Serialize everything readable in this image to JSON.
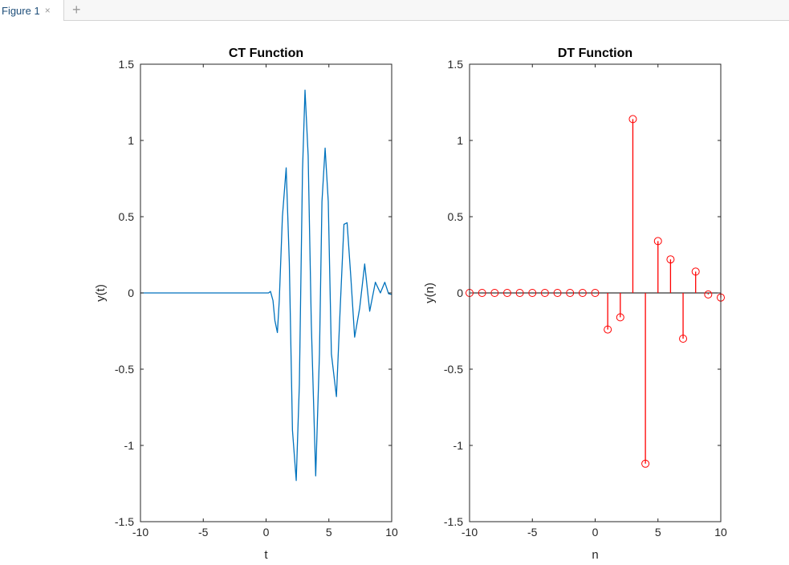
{
  "window": {
    "tab_label": "Figure 1",
    "close_glyph": "×",
    "add_glyph": "+"
  },
  "colors": {
    "ct_line": "#0072BD",
    "dt_stem": "#ff0000",
    "axes": "#262626"
  },
  "chart_data": [
    {
      "type": "line",
      "title": "CT Function",
      "xlabel": "t",
      "ylabel": "y(t)",
      "xlim": [
        -10,
        10
      ],
      "ylim": [
        -1.5,
        1.5
      ],
      "xticks": [
        -10,
        -5,
        0,
        5,
        10
      ],
      "yticks": [
        -1.5,
        -1,
        -0.5,
        0,
        0.5,
        1,
        1.5
      ],
      "grid": false,
      "x": [
        -10,
        0.2,
        0.35,
        0.55,
        0.7,
        0.9,
        1.05,
        1.3,
        1.6,
        1.85,
        2.1,
        2.4,
        2.65,
        2.9,
        3.1,
        3.35,
        3.6,
        3.95,
        4.25,
        4.45,
        4.7,
        4.95,
        5.2,
        5.6,
        5.9,
        6.2,
        6.45,
        6.75,
        7.05,
        7.45,
        7.85,
        8.25,
        8.7,
        9.1,
        9.45,
        9.75,
        10
      ],
      "y": [
        0,
        0,
        0.01,
        -0.05,
        -0.18,
        -0.26,
        -0.05,
        0.5,
        0.82,
        0.2,
        -0.9,
        -1.23,
        -0.6,
        0.8,
        1.33,
        0.9,
        -0.2,
        -1.2,
        -0.4,
        0.6,
        0.95,
        0.6,
        -0.4,
        -0.68,
        -0.1,
        0.45,
        0.46,
        0.1,
        -0.29,
        -0.1,
        0.19,
        -0.12,
        0.07,
        0.0,
        0.07,
        -0.005,
        -0.01
      ]
    },
    {
      "type": "stem",
      "title": "DT Function",
      "xlabel": "n",
      "ylabel": "y(n)",
      "xlim": [
        -10,
        10
      ],
      "ylim": [
        -1.5,
        1.5
      ],
      "xticks": [
        -10,
        -5,
        0,
        5,
        10
      ],
      "yticks": [
        -1.5,
        -1,
        -0.5,
        0,
        0.5,
        1,
        1.5
      ],
      "grid": false,
      "x": [
        -10,
        -9,
        -8,
        -7,
        -6,
        -5,
        -4,
        -3,
        -2,
        -1,
        0,
        1,
        2,
        3,
        4,
        5,
        6,
        7,
        8,
        9,
        10
      ],
      "y": [
        0,
        0,
        0,
        0,
        0,
        0,
        0,
        0,
        0,
        0,
        0,
        -0.24,
        -0.16,
        1.14,
        -1.12,
        0.34,
        0.22,
        -0.3,
        0.14,
        -0.01,
        -0.03
      ]
    }
  ]
}
